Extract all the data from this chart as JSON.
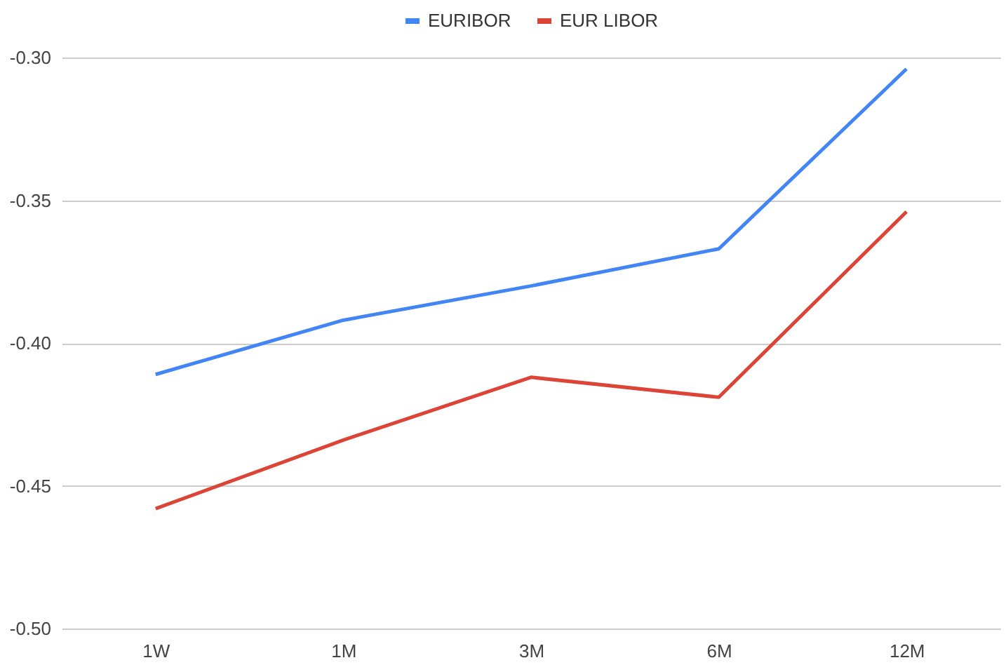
{
  "chart_data": {
    "type": "line",
    "categories": [
      "1W",
      "1M",
      "3M",
      "6M",
      "12M"
    ],
    "series": [
      {
        "name": "EURIBOR",
        "color": "#4285f4",
        "values": [
          -0.411,
          -0.392,
          -0.38,
          -0.367,
          -0.304
        ]
      },
      {
        "name": "EUR LIBOR",
        "color": "#db4437",
        "values": [
          -0.458,
          -0.434,
          -0.412,
          -0.419,
          -0.354
        ]
      }
    ],
    "ylim": [
      -0.5,
      -0.3
    ],
    "yticks": [
      {
        "value": -0.5,
        "label": "-0.50"
      },
      {
        "value": -0.45,
        "label": "-0.45"
      },
      {
        "value": -0.4,
        "label": "-0.40"
      },
      {
        "value": -0.35,
        "label": "-0.35"
      },
      {
        "value": -0.3,
        "label": "-0.30"
      }
    ],
    "grid": "y",
    "legend": "top",
    "marker": "none"
  }
}
